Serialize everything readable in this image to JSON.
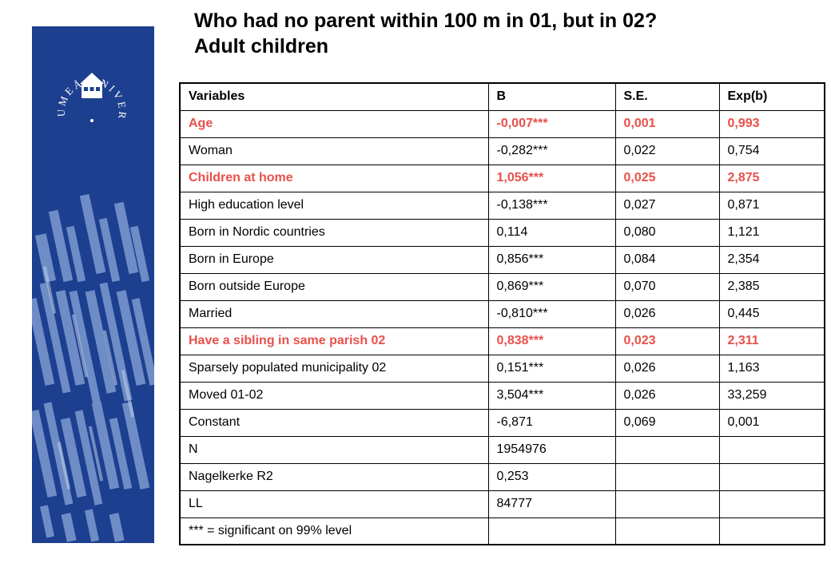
{
  "title": {
    "line1": "Who had no parent within 100 m in 01, but in 02?",
    "line2": "Adult children"
  },
  "logo": {
    "text": "UMEÅ UNIVERSITET"
  },
  "colors": {
    "banner": "#1d3f8f",
    "highlight": "#e8504b"
  },
  "table": {
    "headers": [
      "Variables",
      "B",
      "S.E.",
      "Exp(b)"
    ],
    "rows": [
      {
        "cells": [
          "Age",
          "-0,007***",
          "0,001",
          "0,993"
        ],
        "highlight": true
      },
      {
        "cells": [
          "Woman",
          "-0,282***",
          "0,022",
          "0,754"
        ],
        "highlight": false
      },
      {
        "cells": [
          "Children at home",
          "1,056***",
          "0,025",
          "2,875"
        ],
        "highlight": true
      },
      {
        "cells": [
          "High education level",
          "-0,138***",
          "0,027",
          "0,871"
        ],
        "highlight": false
      },
      {
        "cells": [
          "Born in Nordic countries",
          "0,114",
          "0,080",
          "1,121"
        ],
        "highlight": false
      },
      {
        "cells": [
          "Born in Europe",
          "0,856***",
          "0,084",
          "2,354"
        ],
        "highlight": false
      },
      {
        "cells": [
          "Born outside Europe",
          "0,869***",
          "0,070",
          " 2,385"
        ],
        "highlight": false
      },
      {
        "cells": [
          "Married",
          "-0,810***",
          "0,026",
          "0,445"
        ],
        "highlight": false
      },
      {
        "cells": [
          "Have a sibling in same parish 02",
          "0,838***",
          "0,023",
          "2,311"
        ],
        "highlight": true
      },
      {
        "cells": [
          "Sparsely populated municipality 02",
          "0,151***",
          "0,026",
          "1,163"
        ],
        "highlight": false
      },
      {
        "cells": [
          "Moved 01-02",
          "3,504***",
          "0,026",
          "33,259"
        ],
        "highlight": false
      },
      {
        "cells": [
          "Constant",
          "-6,871",
          "0,069",
          "0,001"
        ],
        "highlight": false
      },
      {
        "cells": [
          "N",
          "1954976",
          "",
          ""
        ],
        "highlight": false
      },
      {
        "cells": [
          "Nagelkerke R2",
          "0,253",
          "",
          ""
        ],
        "highlight": false
      },
      {
        "cells": [
          "LL",
          "84777",
          "",
          ""
        ],
        "highlight": false
      },
      {
        "cells": [
          "*** = significant on 99% level",
          "",
          "",
          ""
        ],
        "highlight": false
      }
    ]
  }
}
